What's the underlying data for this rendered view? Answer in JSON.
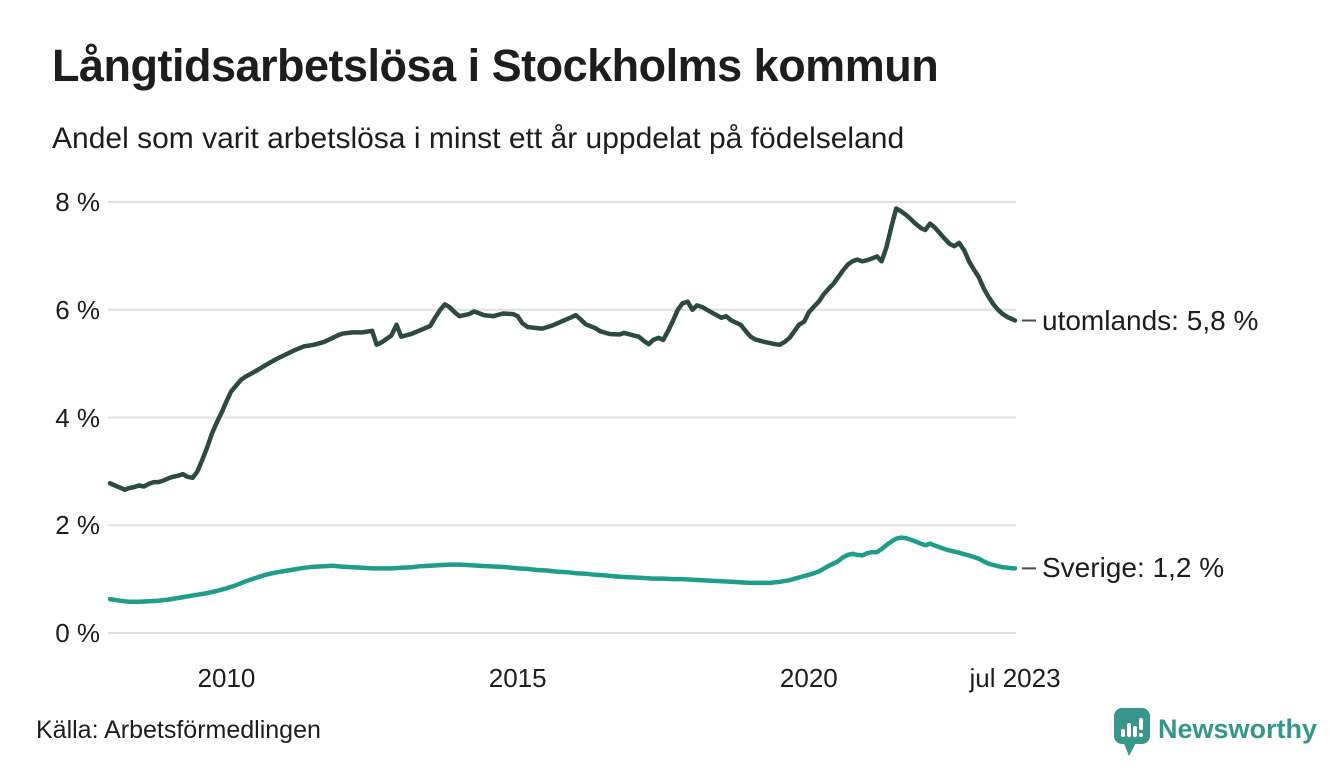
{
  "header": {
    "title": "Långtidsarbetslösa i Stockholms kommun",
    "subtitle": "Andel som varit arbetslösa i minst ett år uppdelat på födelseland"
  },
  "chart_data": {
    "type": "line",
    "title": "Långtidsarbetslösa i Stockholms kommun",
    "subtitle": "Andel som varit arbetslösa i minst ett år uppdelat på födelseland",
    "xlabel": "",
    "ylabel": "",
    "x_domain": [
      2008.0,
      2023.54
    ],
    "ylim": [
      0,
      8
    ],
    "grid": true,
    "grid_color": "#e0e0e0",
    "legend_position": "end-of-line-labels",
    "y_ticks": [
      {
        "value": 0,
        "label": "0 %"
      },
      {
        "value": 2,
        "label": "2 %"
      },
      {
        "value": 4,
        "label": "4 %"
      },
      {
        "value": 6,
        "label": "6 %"
      },
      {
        "value": 8,
        "label": "8 %"
      }
    ],
    "x_ticks": [
      {
        "value": 2010,
        "label": "2010"
      },
      {
        "value": 2015,
        "label": "2015"
      },
      {
        "value": 2020,
        "label": "2020"
      },
      {
        "value": 2023.54,
        "label": "jul 2023"
      }
    ],
    "series": [
      {
        "name": "utomlands",
        "end_label": "utomlands: 5,8 %",
        "last_value_label": "5,8 %",
        "color": "#2c4a41",
        "points": [
          [
            2008.0,
            2.78
          ],
          [
            2008.08,
            2.74
          ],
          [
            2008.17,
            2.7
          ],
          [
            2008.25,
            2.66
          ],
          [
            2008.33,
            2.69
          ],
          [
            2008.42,
            2.71
          ],
          [
            2008.5,
            2.74
          ],
          [
            2008.58,
            2.72
          ],
          [
            2008.67,
            2.77
          ],
          [
            2008.75,
            2.8
          ],
          [
            2008.83,
            2.8
          ],
          [
            2008.92,
            2.83
          ],
          [
            2009.0,
            2.87
          ],
          [
            2009.08,
            2.9
          ],
          [
            2009.17,
            2.92
          ],
          [
            2009.25,
            2.95
          ],
          [
            2009.33,
            2.9
          ],
          [
            2009.42,
            2.88
          ],
          [
            2009.5,
            3.0
          ],
          [
            2009.58,
            3.2
          ],
          [
            2009.67,
            3.45
          ],
          [
            2009.75,
            3.7
          ],
          [
            2009.83,
            3.9
          ],
          [
            2009.92,
            4.1
          ],
          [
            2010.0,
            4.3
          ],
          [
            2010.08,
            4.48
          ],
          [
            2010.17,
            4.6
          ],
          [
            2010.25,
            4.7
          ],
          [
            2010.33,
            4.76
          ],
          [
            2010.5,
            4.86
          ],
          [
            2010.67,
            4.97
          ],
          [
            2010.83,
            5.07
          ],
          [
            2011.0,
            5.16
          ],
          [
            2011.17,
            5.25
          ],
          [
            2011.33,
            5.32
          ],
          [
            2011.5,
            5.35
          ],
          [
            2011.67,
            5.4
          ],
          [
            2011.83,
            5.48
          ],
          [
            2011.92,
            5.53
          ],
          [
            2012.0,
            5.56
          ],
          [
            2012.17,
            5.58
          ],
          [
            2012.33,
            5.58
          ],
          [
            2012.5,
            5.61
          ],
          [
            2012.58,
            5.35
          ],
          [
            2012.67,
            5.4
          ],
          [
            2012.83,
            5.52
          ],
          [
            2012.92,
            5.72
          ],
          [
            2013.0,
            5.5
          ],
          [
            2013.17,
            5.55
          ],
          [
            2013.33,
            5.62
          ],
          [
            2013.5,
            5.7
          ],
          [
            2013.58,
            5.85
          ],
          [
            2013.67,
            6.0
          ],
          [
            2013.75,
            6.1
          ],
          [
            2013.83,
            6.05
          ],
          [
            2013.92,
            5.95
          ],
          [
            2014.0,
            5.88
          ],
          [
            2014.17,
            5.92
          ],
          [
            2014.25,
            5.97
          ],
          [
            2014.42,
            5.9
          ],
          [
            2014.58,
            5.88
          ],
          [
            2014.75,
            5.93
          ],
          [
            2014.92,
            5.92
          ],
          [
            2015.0,
            5.88
          ],
          [
            2015.08,
            5.75
          ],
          [
            2015.17,
            5.68
          ],
          [
            2015.33,
            5.66
          ],
          [
            2015.42,
            5.65
          ],
          [
            2015.58,
            5.7
          ],
          [
            2015.75,
            5.78
          ],
          [
            2015.92,
            5.86
          ],
          [
            2016.0,
            5.9
          ],
          [
            2016.08,
            5.82
          ],
          [
            2016.17,
            5.73
          ],
          [
            2016.33,
            5.66
          ],
          [
            2016.42,
            5.6
          ],
          [
            2016.58,
            5.55
          ],
          [
            2016.75,
            5.54
          ],
          [
            2016.83,
            5.57
          ],
          [
            2017.0,
            5.52
          ],
          [
            2017.08,
            5.5
          ],
          [
            2017.17,
            5.42
          ],
          [
            2017.25,
            5.36
          ],
          [
            2017.33,
            5.44
          ],
          [
            2017.42,
            5.48
          ],
          [
            2017.5,
            5.44
          ],
          [
            2017.58,
            5.6
          ],
          [
            2017.67,
            5.8
          ],
          [
            2017.75,
            6.0
          ],
          [
            2017.83,
            6.12
          ],
          [
            2017.92,
            6.15
          ],
          [
            2018.0,
            6.0
          ],
          [
            2018.08,
            6.08
          ],
          [
            2018.17,
            6.05
          ],
          [
            2018.33,
            5.95
          ],
          [
            2018.5,
            5.85
          ],
          [
            2018.58,
            5.88
          ],
          [
            2018.67,
            5.8
          ],
          [
            2018.83,
            5.72
          ],
          [
            2018.92,
            5.6
          ],
          [
            2019.0,
            5.5
          ],
          [
            2019.08,
            5.45
          ],
          [
            2019.25,
            5.4
          ],
          [
            2019.42,
            5.36
          ],
          [
            2019.5,
            5.35
          ],
          [
            2019.58,
            5.4
          ],
          [
            2019.67,
            5.48
          ],
          [
            2019.75,
            5.6
          ],
          [
            2019.83,
            5.72
          ],
          [
            2019.92,
            5.78
          ],
          [
            2020.0,
            5.95
          ],
          [
            2020.08,
            6.05
          ],
          [
            2020.17,
            6.15
          ],
          [
            2020.25,
            6.28
          ],
          [
            2020.33,
            6.38
          ],
          [
            2020.42,
            6.48
          ],
          [
            2020.5,
            6.6
          ],
          [
            2020.58,
            6.72
          ],
          [
            2020.67,
            6.84
          ],
          [
            2020.75,
            6.9
          ],
          [
            2020.83,
            6.93
          ],
          [
            2020.92,
            6.9
          ],
          [
            2021.0,
            6.92
          ],
          [
            2021.08,
            6.95
          ],
          [
            2021.17,
            6.99
          ],
          [
            2021.25,
            6.9
          ],
          [
            2021.33,
            7.15
          ],
          [
            2021.42,
            7.55
          ],
          [
            2021.5,
            7.88
          ],
          [
            2021.58,
            7.83
          ],
          [
            2021.67,
            7.76
          ],
          [
            2021.75,
            7.68
          ],
          [
            2021.83,
            7.6
          ],
          [
            2021.92,
            7.52
          ],
          [
            2022.0,
            7.48
          ],
          [
            2022.08,
            7.6
          ],
          [
            2022.17,
            7.52
          ],
          [
            2022.25,
            7.42
          ],
          [
            2022.33,
            7.32
          ],
          [
            2022.42,
            7.22
          ],
          [
            2022.5,
            7.18
          ],
          [
            2022.58,
            7.24
          ],
          [
            2022.67,
            7.1
          ],
          [
            2022.75,
            6.9
          ],
          [
            2022.83,
            6.75
          ],
          [
            2022.92,
            6.6
          ],
          [
            2023.0,
            6.4
          ],
          [
            2023.08,
            6.25
          ],
          [
            2023.17,
            6.1
          ],
          [
            2023.25,
            6.0
          ],
          [
            2023.33,
            5.92
          ],
          [
            2023.42,
            5.86
          ],
          [
            2023.5,
            5.82
          ],
          [
            2023.54,
            5.8
          ]
        ]
      },
      {
        "name": "Sverige",
        "end_label": "Sverige: 1,2 %",
        "last_value_label": "1,2 %",
        "color": "#1f9d8a",
        "points": [
          [
            2008.0,
            0.63
          ],
          [
            2008.17,
            0.6
          ],
          [
            2008.33,
            0.58
          ],
          [
            2008.5,
            0.58
          ],
          [
            2008.67,
            0.59
          ],
          [
            2008.83,
            0.6
          ],
          [
            2009.0,
            0.62
          ],
          [
            2009.17,
            0.65
          ],
          [
            2009.33,
            0.68
          ],
          [
            2009.5,
            0.71
          ],
          [
            2009.67,
            0.74
          ],
          [
            2009.83,
            0.78
          ],
          [
            2010.0,
            0.83
          ],
          [
            2010.17,
            0.89
          ],
          [
            2010.33,
            0.96
          ],
          [
            2010.5,
            1.02
          ],
          [
            2010.67,
            1.08
          ],
          [
            2010.83,
            1.12
          ],
          [
            2011.0,
            1.15
          ],
          [
            2011.17,
            1.18
          ],
          [
            2011.33,
            1.21
          ],
          [
            2011.5,
            1.23
          ],
          [
            2011.67,
            1.24
          ],
          [
            2011.83,
            1.25
          ],
          [
            2012.0,
            1.23
          ],
          [
            2012.17,
            1.22
          ],
          [
            2012.33,
            1.21
          ],
          [
            2012.5,
            1.2
          ],
          [
            2012.67,
            1.2
          ],
          [
            2012.83,
            1.2
          ],
          [
            2013.0,
            1.21
          ],
          [
            2013.17,
            1.22
          ],
          [
            2013.33,
            1.24
          ],
          [
            2013.5,
            1.25
          ],
          [
            2013.67,
            1.26
          ],
          [
            2013.83,
            1.27
          ],
          [
            2014.0,
            1.27
          ],
          [
            2014.17,
            1.26
          ],
          [
            2014.33,
            1.25
          ],
          [
            2014.5,
            1.24
          ],
          [
            2014.67,
            1.23
          ],
          [
            2014.83,
            1.22
          ],
          [
            2015.0,
            1.2
          ],
          [
            2015.17,
            1.19
          ],
          [
            2015.33,
            1.17
          ],
          [
            2015.5,
            1.16
          ],
          [
            2015.67,
            1.14
          ],
          [
            2015.83,
            1.13
          ],
          [
            2016.0,
            1.11
          ],
          [
            2016.17,
            1.1
          ],
          [
            2016.33,
            1.08
          ],
          [
            2016.5,
            1.07
          ],
          [
            2016.67,
            1.05
          ],
          [
            2016.83,
            1.04
          ],
          [
            2017.0,
            1.03
          ],
          [
            2017.17,
            1.02
          ],
          [
            2017.33,
            1.01
          ],
          [
            2017.5,
            1.01
          ],
          [
            2017.67,
            1.0
          ],
          [
            2017.83,
            1.0
          ],
          [
            2018.0,
            0.99
          ],
          [
            2018.17,
            0.98
          ],
          [
            2018.33,
            0.97
          ],
          [
            2018.5,
            0.96
          ],
          [
            2018.67,
            0.95
          ],
          [
            2018.83,
            0.94
          ],
          [
            2019.0,
            0.93
          ],
          [
            2019.17,
            0.93
          ],
          [
            2019.33,
            0.93
          ],
          [
            2019.5,
            0.95
          ],
          [
            2019.67,
            0.98
          ],
          [
            2019.83,
            1.03
          ],
          [
            2020.0,
            1.08
          ],
          [
            2020.17,
            1.14
          ],
          [
            2020.33,
            1.24
          ],
          [
            2020.5,
            1.33
          ],
          [
            2020.58,
            1.4
          ],
          [
            2020.67,
            1.45
          ],
          [
            2020.75,
            1.47
          ],
          [
            2020.83,
            1.45
          ],
          [
            2020.92,
            1.44
          ],
          [
            2021.0,
            1.48
          ],
          [
            2021.08,
            1.5
          ],
          [
            2021.17,
            1.5
          ],
          [
            2021.25,
            1.56
          ],
          [
            2021.33,
            1.63
          ],
          [
            2021.42,
            1.7
          ],
          [
            2021.5,
            1.75
          ],
          [
            2021.58,
            1.77
          ],
          [
            2021.67,
            1.76
          ],
          [
            2021.75,
            1.73
          ],
          [
            2021.83,
            1.7
          ],
          [
            2021.92,
            1.66
          ],
          [
            2022.0,
            1.63
          ],
          [
            2022.08,
            1.66
          ],
          [
            2022.17,
            1.62
          ],
          [
            2022.25,
            1.59
          ],
          [
            2022.33,
            1.56
          ],
          [
            2022.42,
            1.53
          ],
          [
            2022.5,
            1.51
          ],
          [
            2022.58,
            1.49
          ],
          [
            2022.67,
            1.46
          ],
          [
            2022.75,
            1.44
          ],
          [
            2022.83,
            1.41
          ],
          [
            2022.92,
            1.38
          ],
          [
            2023.0,
            1.33
          ],
          [
            2023.08,
            1.29
          ],
          [
            2023.17,
            1.26
          ],
          [
            2023.25,
            1.24
          ],
          [
            2023.33,
            1.22
          ],
          [
            2023.42,
            1.21
          ],
          [
            2023.5,
            1.2
          ],
          [
            2023.54,
            1.2
          ]
        ]
      }
    ]
  },
  "footer": {
    "source": "Källa: Arbetsförmedlingen",
    "brand": "Newsworthy",
    "brand_color": "#36968a",
    "logo_icon": "bar-chart-speech-bubble-icon"
  },
  "colors": {
    "background": "#ffffff",
    "text": "#1d1d1b",
    "gridline": "#e0e0e0",
    "connector": "#4a4a4a",
    "series_utomlands": "#2c4a41",
    "series_sverige": "#1f9d8a",
    "brand_teal": "#36968a"
  }
}
